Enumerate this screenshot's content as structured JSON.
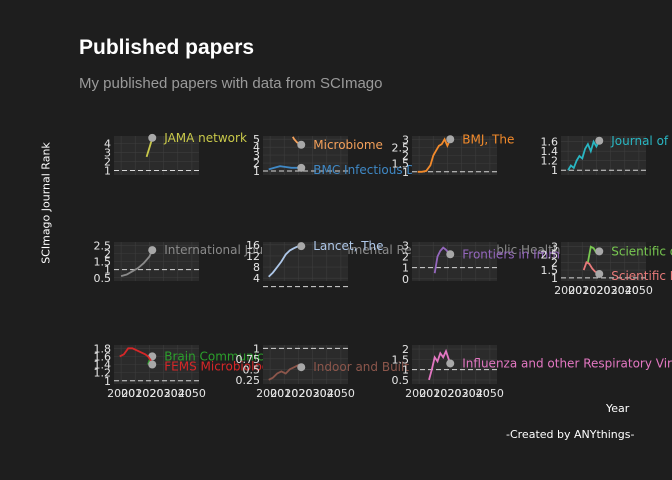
{
  "header": {
    "title": "Published papers",
    "subtitle": "My published papers with data from SCImago"
  },
  "axes": {
    "y_title": "SCImago Journal Rank",
    "x_title": "Year"
  },
  "caption": "-Created by ANYthings-",
  "colors": {
    "background": "#1e1e1e",
    "panel": "#2b2b2b",
    "grid": "#3d3d3d",
    "reference_line": "#d8d8d8",
    "marker": "#a8a8a8"
  },
  "chart_data": {
    "type": "line",
    "facets": true,
    "grid": true,
    "legend": "none",
    "shared_x_ticks": [
      "2000",
      "2010",
      "2020",
      "2030",
      "2040",
      "2050"
    ],
    "reference_line_y": 1,
    "panels": [
      {
        "yticks": [
          1,
          2,
          3,
          4
        ],
        "ylim": [
          0.5,
          4.8
        ],
        "series": [
          {
            "name": "JAMA network",
            "color": "#c9c94a",
            "x": [
              2018,
              2019,
              2020,
              2021,
              2022
            ],
            "y": [
              2.5,
              3.0,
              3.5,
              4.0,
              4.6
            ]
          }
        ]
      },
      {
        "yticks": [
          1,
          2,
          3,
          4,
          5
        ],
        "ylim": [
          0.5,
          5.4
        ],
        "series": [
          {
            "name": "Microbiome",
            "color": "#f4a05a",
            "x": [
              2016,
              2017,
              2018,
              2019,
              2020,
              2021,
              2022
            ],
            "y": [
              5.3,
              5.0,
              4.8,
              4.6,
              4.5,
              4.4,
              4.3
            ]
          },
          {
            "name": "BMC Infectious Diseases",
            "color": "#3f88c5",
            "x": [
              1999,
              2003,
              2007,
              2011,
              2015,
              2019,
              2022
            ],
            "y": [
              1.2,
              1.4,
              1.6,
              1.5,
              1.4,
              1.4,
              1.4
            ]
          }
        ]
      },
      {
        "yticks": [
          1.0,
          1.5,
          2.0,
          2.5,
          3.0
        ],
        "ylim": [
          0.8,
          3.2
        ],
        "series": [
          {
            "name": "BMJ, The",
            "color": "#f28a2b",
            "x": [
              1999,
              2002,
              2005,
              2008,
              2010,
              2012,
              2014,
              2016,
              2018,
              2020,
              2022
            ],
            "y": [
              1.0,
              1.0,
              1.05,
              1.4,
              2.0,
              2.3,
              2.6,
              2.7,
              3.0,
              2.6,
              3.0
            ]
          }
        ]
      },
      {
        "yticks": [
          1.0,
          1.2,
          1.4,
          1.6
        ],
        "ylim": [
          0.9,
          1.72
        ],
        "series": [
          {
            "name": "Journal of Medical Internet Research",
            "color": "#29b6c2",
            "x": [
              2000,
              2002,
              2004,
              2006,
              2008,
              2010,
              2012,
              2014,
              2016,
              2018,
              2020,
              2022
            ],
            "y": [
              1.0,
              1.1,
              1.05,
              1.2,
              1.3,
              1.25,
              1.45,
              1.55,
              1.4,
              1.6,
              1.5,
              1.62
            ]
          }
        ]
      },
      {
        "yticks": [
          0.5,
          1.0,
          1.5,
          2.0,
          2.5
        ],
        "ylim": [
          0.3,
          2.7
        ],
        "series": [
          {
            "name": "International Journal of Environmental Research and Public Health",
            "color": "#8a8a8a",
            "x": [
              2000,
              2004,
              2008,
              2012,
              2016,
              2020,
              2022
            ],
            "y": [
              0.6,
              0.7,
              0.9,
              1.1,
              1.4,
              1.8,
              2.2
            ]
          }
        ]
      },
      {
        "yticks": [
          4,
          8,
          12,
          16
        ],
        "ylim": [
          3,
          17
        ],
        "series": [
          {
            "name": "Lancet, The",
            "color": "#aec7e8",
            "x": [
              1999,
              2002,
              2005,
              2008,
              2011,
              2014,
              2017,
              2020,
              2022
            ],
            "y": [
              4.5,
              6.0,
              8.0,
              10.0,
              12.5,
              14.0,
              14.8,
              15.5,
              15.5
            ]
          }
        ]
      },
      {
        "yticks": [
          0,
          1,
          2,
          3
        ],
        "ylim": [
          -0.2,
          3.3
        ],
        "series": [
          {
            "name": "Frontiers in Immunology",
            "color": "#9467bd",
            "x": [
              2011,
              2013,
              2015,
              2017,
              2019,
              2021,
              2022
            ],
            "y": [
              0.5,
              2.0,
              2.5,
              2.8,
              2.6,
              2.3,
              2.2
            ]
          }
        ]
      },
      {
        "yticks": [
          1.0,
          1.5,
          2.0,
          2.5,
          3.0
        ],
        "ylim": [
          0.8,
          3.3
        ],
        "series": [
          {
            "name": "Scientific data",
            "color": "#78c850",
            "x": [
              2014,
              2016,
              2018,
              2020,
              2022
            ],
            "y": [
              2.0,
              3.0,
              2.9,
              2.6,
              2.7
            ]
          },
          {
            "name": "Scientific Reports",
            "color": "#e87a7a",
            "x": [
              2011,
              2013,
              2015,
              2017,
              2019,
              2021,
              2022
            ],
            "y": [
              1.5,
              2.0,
              1.9,
              1.6,
              1.4,
              1.3,
              1.25
            ]
          }
        ]
      },
      {
        "yticks": [
          1.0,
          1.2,
          1.4,
          1.6,
          1.8
        ],
        "ylim": [
          0.92,
          1.88
        ],
        "series": [
          {
            "name": "Brain Communications",
            "color": "#2ca02c",
            "x": [
              2019,
              2021,
              2022
            ],
            "y": [
              1.4,
              1.6,
              1.6
            ]
          },
          {
            "name": "FEMS Microbiology Ecology",
            "color": "#d62728",
            "x": [
              1999,
              2002,
              2005,
              2008,
              2011,
              2014,
              2017,
              2019,
              2020,
              2021,
              2022
            ],
            "y": [
              1.6,
              1.65,
              1.8,
              1.8,
              1.75,
              1.7,
              1.65,
              1.6,
              1.55,
              1.5,
              1.4
            ]
          }
        ]
      },
      {
        "yticks": [
          0.25,
          0.5,
          0.75,
          1.0
        ],
        "ylim": [
          0.15,
          1.08
        ],
        "series": [
          {
            "name": "Indoor and Built Environment",
            "color": "#8c564b",
            "x": [
              1999,
              2002,
              2005,
              2008,
              2011,
              2014,
              2017,
              2020,
              2022
            ],
            "y": [
              0.25,
              0.3,
              0.4,
              0.45,
              0.4,
              0.5,
              0.55,
              0.6,
              0.55
            ]
          }
        ]
      },
      {
        "yticks": [
          0.5,
          1.0,
          1.5,
          2.0
        ],
        "ylim": [
          0.3,
          2.2
        ],
        "series": [
          {
            "name": "Influenza and other Respiratory Viruses",
            "color": "#e377c2",
            "x": [
              2007,
              2009,
              2011,
              2013,
              2015,
              2017,
              2019,
              2021,
              2022
            ],
            "y": [
              0.5,
              1.0,
              1.6,
              1.4,
              1.8,
              1.6,
              1.9,
              1.5,
              1.3
            ]
          }
        ]
      }
    ]
  }
}
